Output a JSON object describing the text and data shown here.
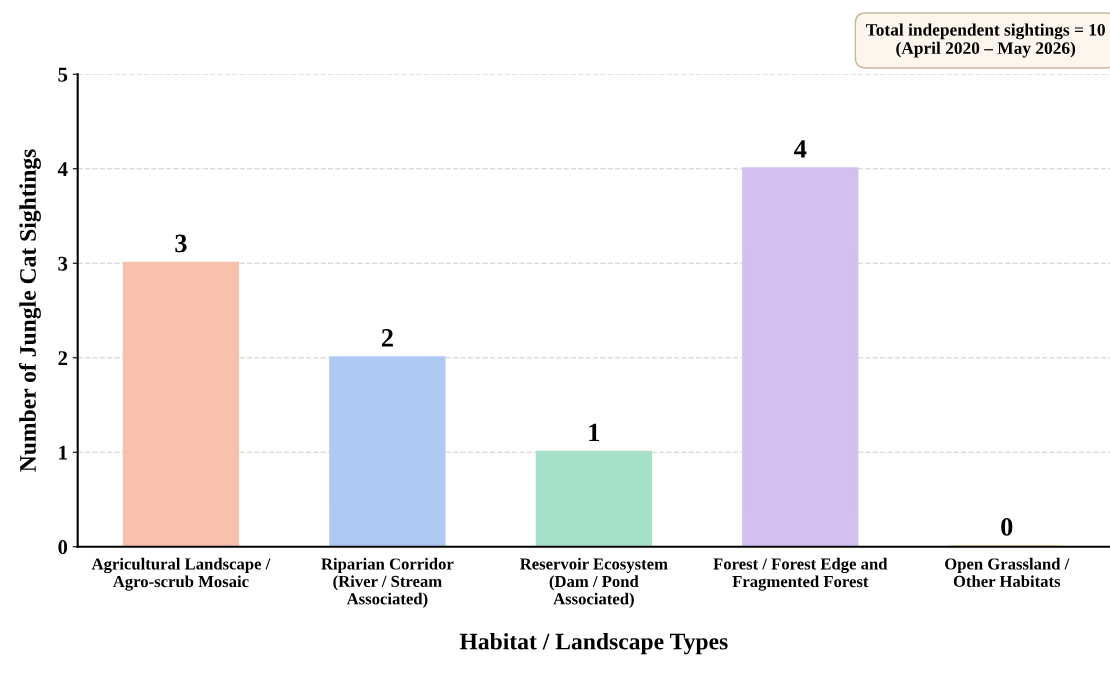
{
  "chart_data": {
    "type": "bar",
    "xlabel": "Habitat / Landscape Types",
    "ylabel": "Number of Jungle Cat Sightings",
    "categories": [
      "Agricultural Landscape /\nAgro-scrub Mosaic",
      "Riparian Corridor\n(River / Stream\nAssociated)",
      "Reservoir Ecosystem\n(Dam / Pond\nAssociated)",
      "Forest / Forest Edge and\nFragmented Forest",
      "Open Grassland /\nOther Habitats"
    ],
    "values": [
      3,
      2,
      1,
      4,
      0
    ],
    "colors": [
      "#f8c1ab",
      "#aecaf2",
      "#a6e0c8",
      "#d4bff0",
      "#f5e08a"
    ],
    "ylim": [
      0,
      5
    ],
    "yticks": [
      0,
      1,
      2,
      3,
      4,
      5
    ],
    "grid": "y",
    "data_labels": true,
    "annotations": [
      "Total independent sightings = 10\n(April 2020 – May 2026)"
    ]
  }
}
